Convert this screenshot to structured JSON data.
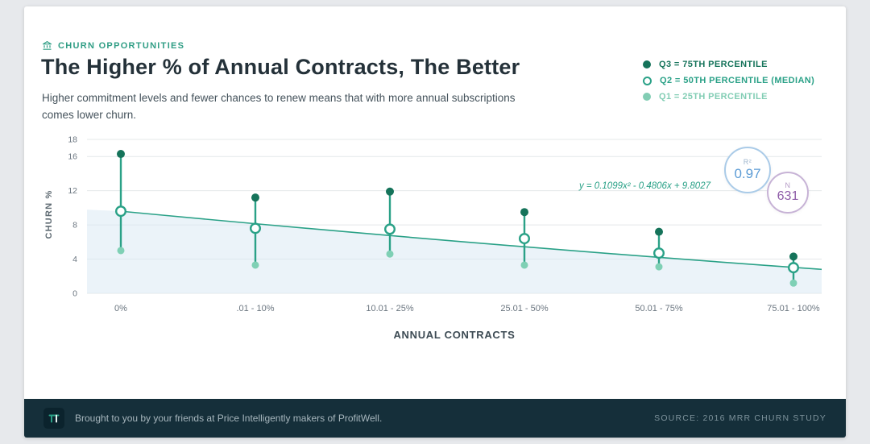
{
  "header": {
    "kicker": "CHURN OPPORTUNITIES",
    "subtitle": "Higher commitment levels and fewer chances to renew means that with more annual subscriptions comes lower churn."
  },
  "legend": [
    {
      "label": "Q3 = 75TH PERCENTILE",
      "color": "#15735a",
      "dot": "filled"
    },
    {
      "label": "Q2 = 50TH PERCENTILE (MEDIAN)",
      "color": "#2aa187",
      "dot": "open"
    },
    {
      "label": "Q1 = 25TH PERCENTILE",
      "color": "#82cdb4",
      "dot": "filled"
    }
  ],
  "chart_data": {
    "type": "scatter",
    "title": "The Higher % of Annual Contracts, The Better",
    "xlabel": "ANNUAL CONTRACTS",
    "ylabel": "CHURN %",
    "categories": [
      "0%",
      ".01 - 10%",
      "10.01 - 25%",
      "25.01 - 50%",
      "50.01 - 75%",
      "75.01 - 100%"
    ],
    "yticks": [
      0,
      4,
      8,
      12,
      16,
      18
    ],
    "ylim": [
      0,
      18
    ],
    "grid": true,
    "legend_position": "top-right",
    "series": [
      {
        "name": "Q3 = 75TH PERCENTILE",
        "role": "q3",
        "values": [
          16.3,
          11.2,
          11.9,
          9.5,
          7.2,
          4.3
        ]
      },
      {
        "name": "Q2 = 50TH PERCENTILE (MEDIAN)",
        "role": "q2",
        "values": [
          9.6,
          7.6,
          7.5,
          6.4,
          4.7,
          3.0
        ]
      },
      {
        "name": "Q1 = 25TH PERCENTILE",
        "role": "q1",
        "values": [
          5.0,
          3.3,
          4.6,
          3.3,
          3.1,
          1.2
        ]
      }
    ],
    "trend": {
      "equation": "y = 0.1099x² - 0.4806x + 9.8027",
      "start_y": 9.6,
      "end_y": 2.8
    },
    "badges": [
      {
        "label": "R²",
        "value": "0.97"
      },
      {
        "label": "N",
        "value": "631"
      }
    ]
  },
  "footer": {
    "brand_text": "Brought to you by your friends at Price Intelligently makers of ProfitWell.",
    "source": "SOURCE: 2016 MRR CHURN STUDY"
  },
  "colors": {
    "q3": "#15735a",
    "q2": "#2aa187",
    "q1": "#7fd0b5",
    "trend": "#2aa187",
    "area": "#d8e8f3",
    "grid": "#e4e8ea",
    "tick_text": "#6b7680",
    "accent": "#2f9d84"
  }
}
